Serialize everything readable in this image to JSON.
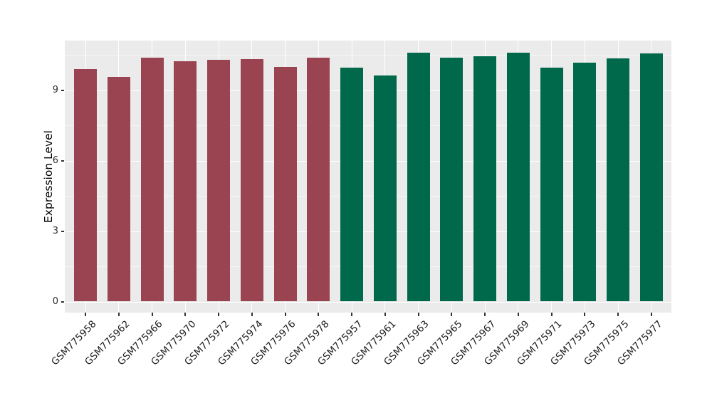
{
  "chart_data": {
    "type": "bar",
    "title": "",
    "xlabel": "",
    "ylabel": "Expression Level",
    "categories": [
      "GSM775958",
      "GSM775962",
      "GSM775966",
      "GSM775970",
      "GSM775972",
      "GSM775974",
      "GSM775976",
      "GSM775978",
      "GSM775957",
      "GSM775961",
      "GSM775963",
      "GSM775965",
      "GSM775967",
      "GSM775969",
      "GSM775971",
      "GSM775973",
      "GSM775975",
      "GSM775977"
    ],
    "values": [
      9.9,
      9.55,
      10.39,
      10.24,
      10.29,
      10.33,
      9.98,
      10.37,
      9.95,
      9.63,
      10.59,
      10.38,
      10.45,
      10.58,
      9.96,
      10.17,
      10.35,
      10.56
    ],
    "bar_colors": [
      "#9A4452",
      "#9A4452",
      "#9A4452",
      "#9A4452",
      "#9A4452",
      "#9A4452",
      "#9A4452",
      "#9A4452",
      "#00694B",
      "#00694B",
      "#00694B",
      "#00694B",
      "#00694B",
      "#00694B",
      "#00694B",
      "#00694B",
      "#00694B",
      "#00694B"
    ],
    "group_colors": {
      "left_group": "#9A4452",
      "right_group": "#00694B"
    },
    "yticks": [
      0,
      3,
      6,
      9
    ],
    "y_minor_ticks": [
      1.5,
      4.5,
      7.5,
      10.5
    ],
    "ylim": [
      0,
      11.1
    ],
    "grid": true,
    "legend": "none",
    "panel_background": "#EBEBEB",
    "grid_color": "#FFFFFF"
  }
}
